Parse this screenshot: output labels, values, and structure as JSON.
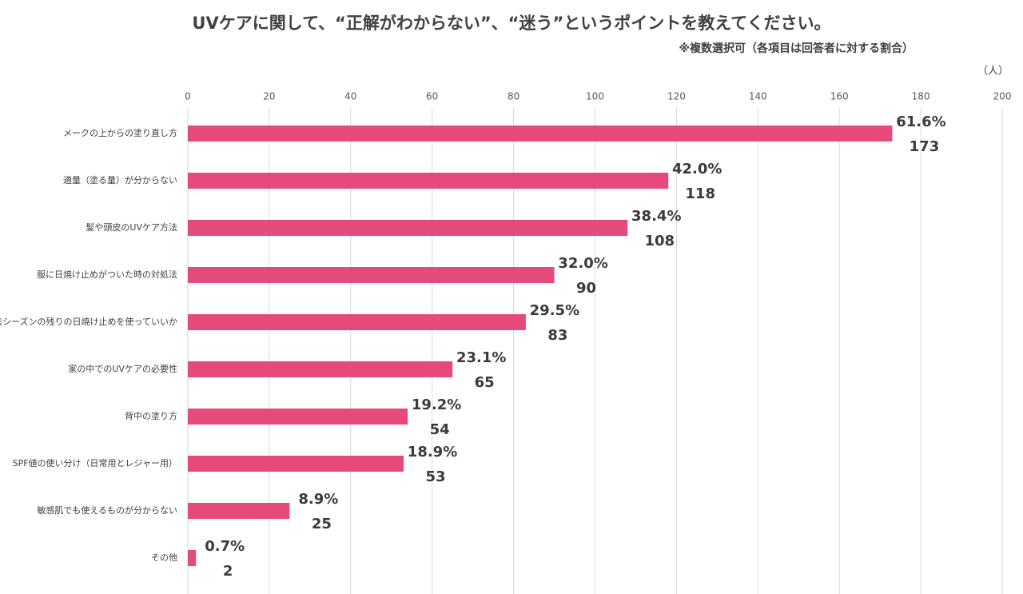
{
  "chart_data": {
    "type": "bar",
    "orientation": "horizontal",
    "title": "UVケアに関して、“正解がわからない”、“迷う”というポイントを教えてください。",
    "subtitle": "※複数選択可（各項目は回答者に対する割合）",
    "unit": "（人）",
    "categories": [
      "メークの上からの塗り直し方",
      "適量（塗る量）が分からない",
      "髪や頭皮のUVケア方法",
      "服に日焼け止めがついた時の対処法",
      "去シーズンの残りの日焼け止めを使っていいか",
      "家の中でのUVケアの必要性",
      "背中の塗り方",
      "SPF値の使い分け（日常用とレジャー用）",
      "敏感肌でも使えるものが分からない",
      "その他"
    ],
    "values": [
      173,
      118,
      108,
      90,
      83,
      65,
      54,
      53,
      25,
      2
    ],
    "percent_labels": [
      "61.6%",
      "42.0%",
      "38.4%",
      "32.0%",
      "29.5%",
      "23.1%",
      "19.2%",
      "18.9%",
      "8.9%",
      "0.7%"
    ],
    "color": "#e64a7b",
    "xlim": [
      0,
      200
    ],
    "xticks": [
      0,
      20,
      40,
      60,
      80,
      100,
      120,
      140,
      160,
      180,
      200
    ],
    "grid": true
  }
}
